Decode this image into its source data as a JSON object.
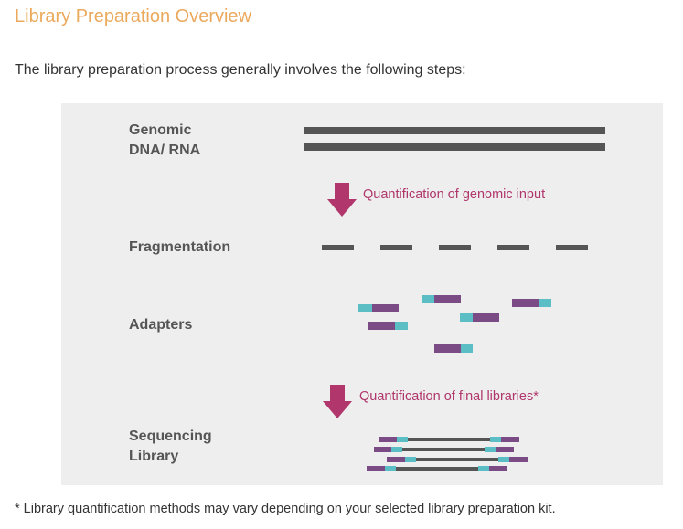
{
  "page": {
    "title": "Library Preparation Overview",
    "intro": "The library preparation process generally involves the following steps:",
    "footnote": "* Library quantification methods may vary depending on your selected library preparation kit."
  },
  "diagram": {
    "steps": {
      "genomic_line1": "Genomic",
      "genomic_line2": "DNA/ RNA",
      "fragmentation": "Fragmentation",
      "adapters": "Adapters",
      "sequencing_line1": "Sequencing",
      "sequencing_line2": "Library"
    },
    "quantification": {
      "genomic_input": "Quantification of genomic input",
      "final_libraries": "Quantification of final libraries*"
    }
  },
  "colors": {
    "title": "#eba95c",
    "dna": "#555555",
    "adapter_purple": "#7b4b86",
    "adapter_teal": "#5cbec5",
    "arrow": "#b0366b"
  }
}
